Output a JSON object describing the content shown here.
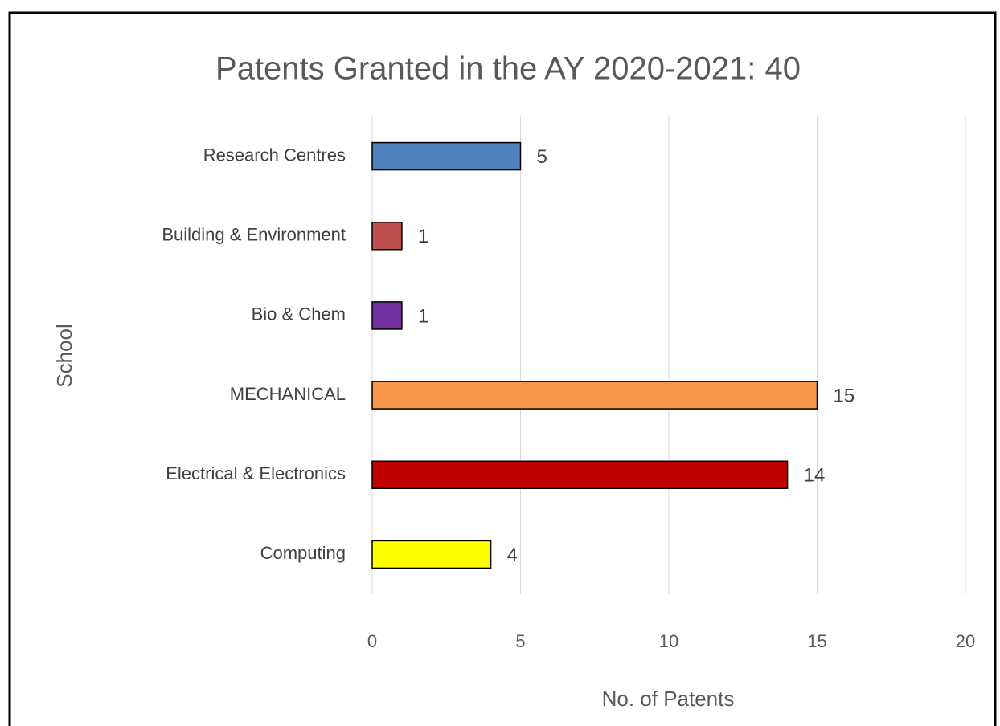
{
  "chart_data": {
    "type": "bar",
    "orientation": "horizontal",
    "title": "Patents Granted in the AY 2020-2021: 40",
    "x_label": "No. of Patents",
    "y_label": "School",
    "categories": [
      "Research Centres",
      "Building & Environment",
      "Bio & Chem",
      "MECHANICAL",
      "Electrical & Electronics",
      "Computing"
    ],
    "values": [
      5,
      1,
      1,
      15,
      14,
      4
    ],
    "colors": [
      "#4f81bd",
      "#c0504d",
      "#7030a0",
      "#f79646",
      "#c00000",
      "#ffff00"
    ],
    "xlim": [
      0,
      20
    ],
    "xticks": [
      0,
      5,
      10,
      15,
      20
    ],
    "grid": true
  }
}
